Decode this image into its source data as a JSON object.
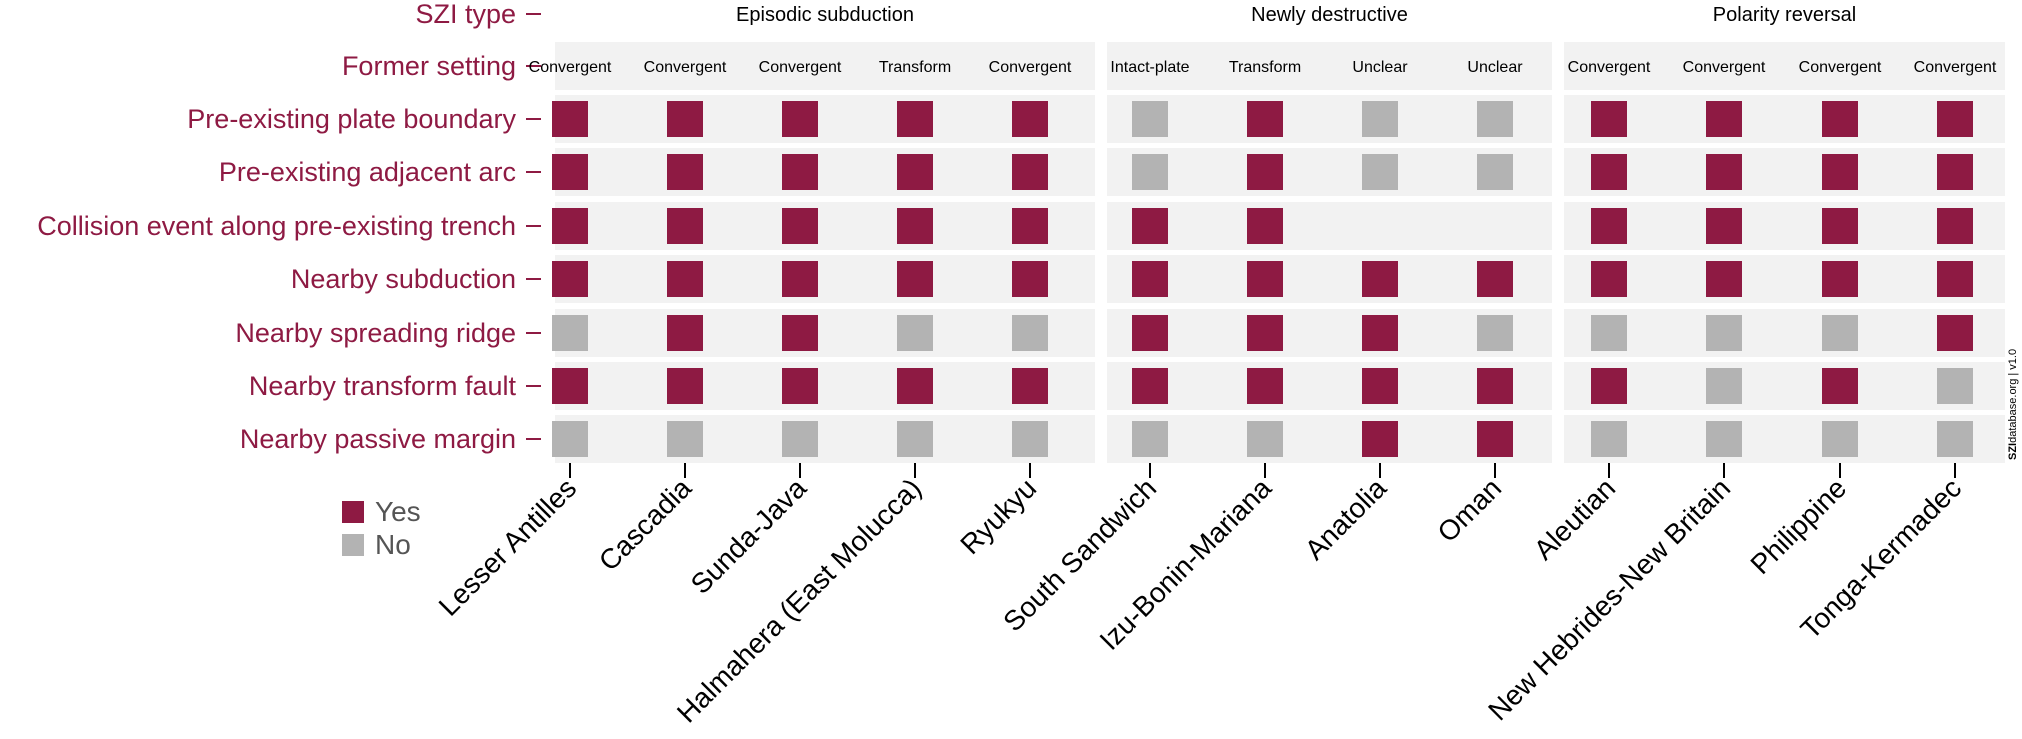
{
  "chart_data": {
    "type": "table",
    "title": "",
    "row_labels": [
      "SZI type",
      "Former setting",
      "Pre-existing plate boundary",
      "Pre-existing adjacent arc",
      "Collision event along pre-existing trench",
      "Nearby subduction",
      "Nearby spreading ridge",
      "Nearby transform fault",
      "Nearby passive margin"
    ],
    "criteria": [
      "Pre-existing plate boundary",
      "Pre-existing adjacent arc",
      "Collision event along pre-existing trench",
      "Nearby subduction",
      "Nearby spreading ridge",
      "Nearby transform fault",
      "Nearby passive margin"
    ],
    "groups": [
      {
        "name": "Episodic subduction",
        "zones": [
          {
            "name": "Lesser Antilles",
            "setting": "Convergent",
            "values": [
              "Y",
              "Y",
              "Y",
              "Y",
              "N",
              "Y",
              "N"
            ]
          },
          {
            "name": "Cascadia",
            "setting": "Convergent",
            "values": [
              "Y",
              "Y",
              "Y",
              "Y",
              "Y",
              "Y",
              "N"
            ]
          },
          {
            "name": "Sunda-Java",
            "setting": "Convergent",
            "values": [
              "Y",
              "Y",
              "Y",
              "Y",
              "Y",
              "Y",
              "N"
            ]
          },
          {
            "name": "Halmahera (East Molucca)",
            "setting": "Transform",
            "values": [
              "Y",
              "Y",
              "Y",
              "Y",
              "N",
              "Y",
              "N"
            ]
          },
          {
            "name": "Ryukyu",
            "setting": "Convergent",
            "values": [
              "Y",
              "Y",
              "Y",
              "Y",
              "N",
              "Y",
              "N"
            ]
          }
        ]
      },
      {
        "name": "Newly destructive",
        "zones": [
          {
            "name": "South Sandwich",
            "setting": "Intact-plate",
            "values": [
              "N",
              "N",
              "Y",
              "Y",
              "Y",
              "Y",
              "N"
            ]
          },
          {
            "name": "Izu-Bonin-Mariana",
            "setting": "Transform",
            "values": [
              "Y",
              "Y",
              "Y",
              "Y",
              "Y",
              "Y",
              "N"
            ]
          },
          {
            "name": "Anatolia",
            "setting": "Unclear",
            "values": [
              "N",
              "N",
              "",
              "Y",
              "Y",
              "Y",
              "Y"
            ]
          },
          {
            "name": "Oman",
            "setting": "Unclear",
            "values": [
              "N",
              "N",
              "",
              "Y",
              "N",
              "Y",
              "Y"
            ]
          }
        ]
      },
      {
        "name": "Polarity reversal",
        "zones": [
          {
            "name": "Aleutian",
            "setting": "Convergent",
            "values": [
              "Y",
              "Y",
              "Y",
              "Y",
              "N",
              "Y",
              "N"
            ]
          },
          {
            "name": "New Hebrides-New Britain",
            "setting": "Convergent",
            "values": [
              "Y",
              "Y",
              "Y",
              "Y",
              "N",
              "N",
              "N"
            ]
          },
          {
            "name": "Philippine",
            "setting": "Convergent",
            "values": [
              "Y",
              "Y",
              "Y",
              "Y",
              "N",
              "Y",
              "N"
            ]
          },
          {
            "name": "Tonga-Kermadec",
            "setting": "Convergent",
            "values": [
              "Y",
              "Y",
              "Y",
              "Y",
              "Y",
              "N",
              "N"
            ]
          }
        ]
      }
    ],
    "legend": [
      {
        "key": "Y",
        "label": "Yes",
        "color": "#8e1a43"
      },
      {
        "key": "N",
        "label": "No",
        "color": "#b3b3b3"
      }
    ],
    "colors": {
      "label": "#8e1a43",
      "panel": "#f2f2f2"
    },
    "credit_bold": "SZI",
    "credit_rest": "database.org | v1.0"
  }
}
